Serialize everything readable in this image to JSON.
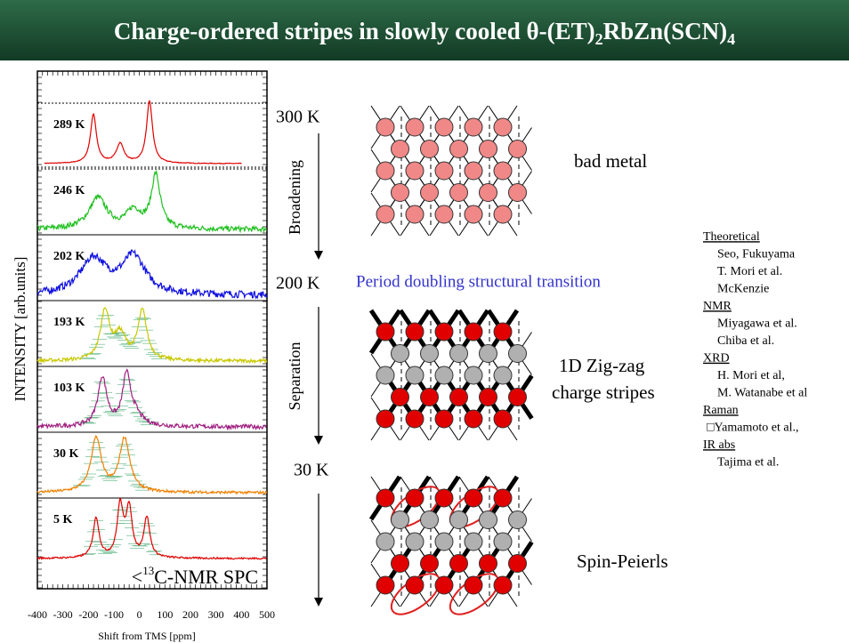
{
  "title": {
    "main": "Charge-ordered stripes in slowly cooled θ-(ET)",
    "sub1": "2",
    "mid": "RbZn(SCN)",
    "sub2": "4"
  },
  "spectra": {
    "y_label": "INTENSITY [arb.units]",
    "x_label": "Shift from TMS [ppm]",
    "x_ticks": [
      "-400",
      "-300",
      "-200",
      "-100",
      "0",
      "100",
      "200",
      "300",
      "400",
      "500"
    ],
    "panels": [
      "289 K",
      "246 K",
      "202 K",
      "193 K",
      "103 K",
      "30 K",
      "5 K"
    ],
    "legend": {
      "pre": "<",
      "sup": "13",
      "post": "C-NMR SPC"
    }
  },
  "temperatures": [
    "300 K",
    "200 K",
    "30 K"
  ],
  "arrows": [
    "Broadening",
    "Separation"
  ],
  "transition": "Period doubling structural transition",
  "phases": {
    "metal": "bad metal",
    "stripes": [
      "1D  Zig-zag",
      "charge stripes"
    ],
    "spin": "Spin-Peierls"
  },
  "references": [
    {
      "heading": "Theoretical",
      "items": [
        "Seo, Fukuyama",
        "T. Mori et al.",
        "McKenzie"
      ]
    },
    {
      "heading": "NMR",
      "items": [
        "Miyagawa et al.",
        "Chiba et al."
      ]
    },
    {
      "heading": "XRD",
      "items": [
        "H. Mori et al,",
        "M. Watanabe et al"
      ]
    },
    {
      "heading": "Raman",
      "items": [
        "□Yamamoto et al.,"
      ]
    },
    {
      "heading": "IR abs",
      "items": [
        "Tajima et al."
      ]
    }
  ]
}
